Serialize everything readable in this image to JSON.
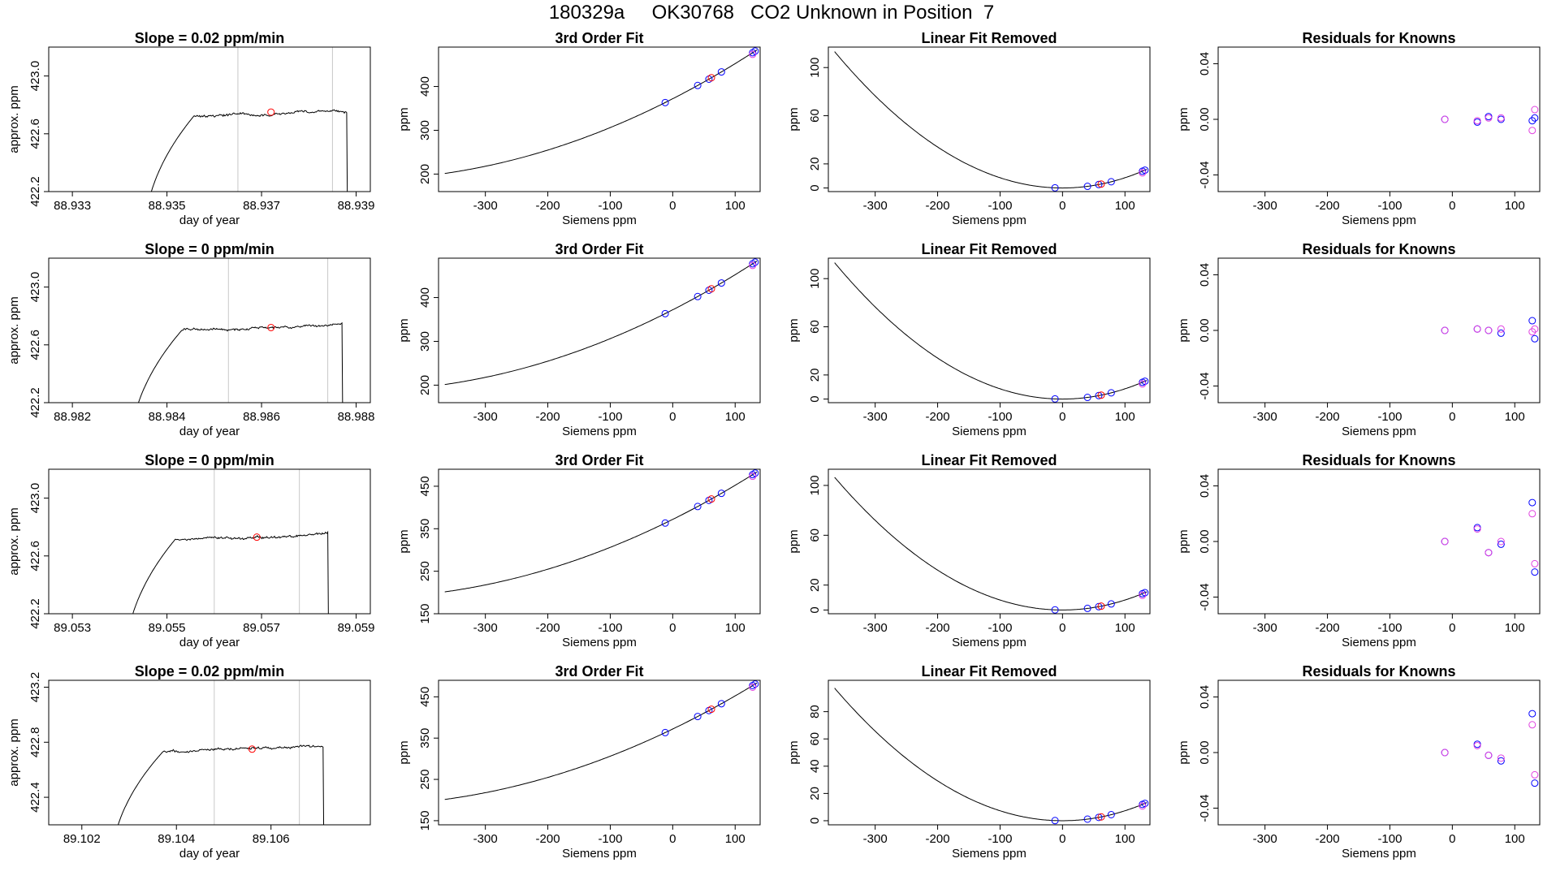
{
  "title": "180329a     OK30768   CO2 Unknown in Position  7",
  "colors": {
    "line": "#000000",
    "ref": "#c8c8c8",
    "known": "#0000ff",
    "resid2": "#e040e0",
    "unknown": "#ff0000"
  },
  "chart_data": [
    {
      "row": 1,
      "type": "line",
      "title": "Slope =  0.02  ppm/min",
      "xlabel": "day of year",
      "ylabel": "approx. ppm",
      "xlim": [
        88.9325,
        88.9393
      ],
      "ylim": [
        422.2,
        423.2
      ],
      "xticks": [
        "88.933",
        "88.935",
        "88.937",
        "88.939"
      ],
      "xtick_values": [
        88.933,
        88.935,
        88.937,
        88.939
      ],
      "yticks": [
        "422.2",
        "422.6",
        "423.0"
      ],
      "ytick_values": [
        422.2,
        422.6,
        423.0
      ],
      "ref_lines": [
        88.9365,
        88.9385
      ],
      "start": 88.9345,
      "end": 88.9388,
      "plateau": 422.74,
      "unknown_point": [
        88.9372,
        422.75
      ]
    },
    {
      "row": 1,
      "type": "line",
      "title": "3rd Order Fit",
      "xlabel": "Siemens ppm",
      "ylabel": "ppm",
      "xlim": [
        -375,
        140
      ],
      "ylim": [
        160,
        490
      ],
      "xticks": [
        "-300",
        "-200",
        "-100",
        "0",
        "100"
      ],
      "xtick_values": [
        -300,
        -200,
        -100,
        0,
        100
      ],
      "yticks": [
        "200",
        "300",
        "400"
      ],
      "ytick_values": [
        200,
        300,
        400
      ],
      "curve_x_range": [
        -365,
        135
      ],
      "curve_coeffs": [
        372,
        0.73,
        0.00072
      ],
      "known_x": [
        -12,
        40,
        58,
        78,
        128,
        132
      ],
      "unknown_x": [
        62
      ]
    },
    {
      "row": 1,
      "type": "line",
      "title": "Linear Fit Removed",
      "xlabel": "Siemens ppm",
      "ylabel": "ppm",
      "xlim": [
        -375,
        140
      ],
      "ylim": [
        -3,
        117
      ],
      "xticks": [
        "-300",
        "-200",
        "-100",
        "0",
        "100"
      ],
      "xtick_values": [
        -300,
        -200,
        -100,
        0,
        100
      ],
      "yticks": [
        "0",
        "20",
        "60",
        "100"
      ],
      "ytick_values": [
        0,
        20,
        60,
        100
      ],
      "curve_x_range": [
        -365,
        135
      ],
      "quad_center": 0,
      "quad_a": 0.00085,
      "known_x": [
        -12,
        40,
        58,
        78,
        128,
        132
      ],
      "unknown_x": [
        62
      ]
    },
    {
      "row": 1,
      "type": "scatter",
      "title": "Residuals for Knowns",
      "xlabel": "Siemens ppm",
      "ylabel": "ppm",
      "xlim": [
        -375,
        140
      ],
      "ylim": [
        -0.052,
        0.052
      ],
      "xticks": [
        "-300",
        "-200",
        "-100",
        "0",
        "100"
      ],
      "xtick_values": [
        -300,
        -200,
        -100,
        0,
        100
      ],
      "yticks": [
        "-0.04",
        "0.00",
        "0.04"
      ],
      "ytick_values": [
        -0.04,
        0,
        0.04
      ],
      "x": [
        -12,
        40,
        58,
        78,
        128,
        132
      ],
      "series": [
        {
          "name": "residual A",
          "values": [
            0.0,
            -0.002,
            0.002,
            0.0,
            -0.001,
            0.001
          ]
        },
        {
          "name": "residual B",
          "values": [
            0.0,
            -0.001,
            0.001,
            0.001,
            -0.008,
            0.007
          ]
        }
      ]
    },
    {
      "row": 2,
      "type": "line",
      "title": "Slope =  0  ppm/min",
      "xlabel": "day of year",
      "ylabel": "approx. ppm",
      "xlim": [
        88.9815,
        88.9883
      ],
      "ylim": [
        422.2,
        423.2
      ],
      "xticks": [
        "88.982",
        "88.984",
        "88.986",
        "88.988"
      ],
      "xtick_values": [
        88.982,
        88.984,
        88.986,
        88.988
      ],
      "yticks": [
        "422.2",
        "422.6",
        "423.0"
      ],
      "ytick_values": [
        422.2,
        422.6,
        423.0
      ],
      "ref_lines": [
        88.9853,
        88.9874
      ],
      "start": 88.9832,
      "end": 88.9877,
      "plateau": 422.72,
      "unknown_point": [
        88.9862,
        422.72
      ]
    },
    {
      "row": 2,
      "type": "line",
      "title": "3rd Order Fit",
      "xlabel": "Siemens ppm",
      "ylabel": "ppm",
      "xlim": [
        -375,
        140
      ],
      "ylim": [
        160,
        490
      ],
      "xticks": [
        "-300",
        "-200",
        "-100",
        "0",
        "100"
      ],
      "xtick_values": [
        -300,
        -200,
        -100,
        0,
        100
      ],
      "yticks": [
        "200",
        "300",
        "400"
      ],
      "ytick_values": [
        200,
        300,
        400
      ],
      "curve_x_range": [
        -365,
        135
      ],
      "curve_coeffs": [
        372,
        0.73,
        0.00072
      ],
      "known_x": [
        -12,
        40,
        58,
        78,
        128,
        132
      ],
      "unknown_x": [
        62
      ]
    },
    {
      "row": 2,
      "type": "line",
      "title": "Linear Fit Removed",
      "xlabel": "Siemens ppm",
      "ylabel": "ppm",
      "xlim": [
        -375,
        140
      ],
      "ylim": [
        -3,
        117
      ],
      "xticks": [
        "-300",
        "-200",
        "-100",
        "0",
        "100"
      ],
      "xtick_values": [
        -300,
        -200,
        -100,
        0,
        100
      ],
      "yticks": [
        "0",
        "20",
        "60",
        "100"
      ],
      "ytick_values": [
        0,
        20,
        60,
        100
      ],
      "curve_x_range": [
        -365,
        135
      ],
      "quad_center": 0,
      "quad_a": 0.00085,
      "known_x": [
        -12,
        40,
        58,
        78,
        128,
        132
      ],
      "unknown_x": [
        62
      ]
    },
    {
      "row": 2,
      "type": "scatter",
      "title": "Residuals for Knowns",
      "xlabel": "Siemens ppm",
      "ylabel": "ppm",
      "xlim": [
        -375,
        140
      ],
      "ylim": [
        -0.052,
        0.052
      ],
      "xticks": [
        "-300",
        "-200",
        "-100",
        "0",
        "100"
      ],
      "xtick_values": [
        -300,
        -200,
        -100,
        0,
        100
      ],
      "yticks": [
        "-0.04",
        "0.00",
        "0.04"
      ],
      "ytick_values": [
        -0.04,
        0,
        0.04
      ],
      "x": [
        -12,
        40,
        58,
        78,
        128,
        132
      ],
      "series": [
        {
          "name": "residual A",
          "values": [
            0.0,
            0.001,
            0.0,
            -0.002,
            0.007,
            -0.006
          ]
        },
        {
          "name": "residual B",
          "values": [
            0.0,
            0.001,
            0.0,
            0.001,
            -0.001,
            0.001
          ]
        }
      ]
    },
    {
      "row": 3,
      "type": "line",
      "title": "Slope =  0  ppm/min",
      "xlabel": "day of year",
      "ylabel": "approx. ppm",
      "xlim": [
        89.0525,
        89.0593
      ],
      "ylim": [
        422.2,
        423.2
      ],
      "xticks": [
        "89.053",
        "89.055",
        "89.057",
        "89.059"
      ],
      "xtick_values": [
        89.053,
        89.055,
        89.057,
        89.059
      ],
      "yticks": [
        "422.2",
        "422.6",
        "423.0"
      ],
      "ytick_values": [
        422.2,
        422.6,
        423.0
      ],
      "ref_lines": [
        89.056,
        89.0578
      ],
      "start": 89.0541,
      "end": 89.0584,
      "plateau": 422.73,
      "unknown_point": [
        89.0569,
        422.73
      ]
    },
    {
      "row": 3,
      "type": "line",
      "title": "3rd Order Fit",
      "xlabel": "Siemens ppm",
      "ylabel": "ppm",
      "xlim": [
        -375,
        140
      ],
      "ylim": [
        150,
        490
      ],
      "xticks": [
        "-300",
        "-200",
        "-100",
        "0",
        "100"
      ],
      "xtick_values": [
        -300,
        -200,
        -100,
        0,
        100
      ],
      "yticks": [
        "150",
        "250",
        "350",
        "450"
      ],
      "ytick_values": [
        150,
        250,
        350,
        450
      ],
      "curve_x_range": [
        -365,
        135
      ],
      "curve_coeffs": [
        372,
        0.73,
        0.00072
      ],
      "known_x": [
        -12,
        40,
        58,
        78,
        128,
        132
      ],
      "unknown_x": [
        62
      ]
    },
    {
      "row": 3,
      "type": "line",
      "title": "Linear Fit Removed",
      "xlabel": "Siemens ppm",
      "ylabel": "ppm",
      "xlim": [
        -375,
        140
      ],
      "ylim": [
        -3,
        113
      ],
      "xticks": [
        "-300",
        "-200",
        "-100",
        "0",
        "100"
      ],
      "xtick_values": [
        -300,
        -200,
        -100,
        0,
        100
      ],
      "yticks": [
        "0",
        "20",
        "60",
        "100"
      ],
      "ytick_values": [
        0,
        20,
        60,
        100
      ],
      "curve_x_range": [
        -365,
        135
      ],
      "quad_center": 0,
      "quad_a": 0.0008,
      "known_x": [
        -12,
        40,
        58,
        78,
        128,
        132
      ],
      "unknown_x": [
        62
      ]
    },
    {
      "row": 3,
      "type": "scatter",
      "title": "Residuals for Knowns",
      "xlabel": "Siemens ppm",
      "ylabel": "ppm",
      "xlim": [
        -375,
        140
      ],
      "ylim": [
        -0.052,
        0.052
      ],
      "xticks": [
        "-300",
        "-200",
        "-100",
        "0",
        "100"
      ],
      "xtick_values": [
        -300,
        -200,
        -100,
        0,
        100
      ],
      "yticks": [
        "-0.04",
        "0.00",
        "0.04"
      ],
      "ytick_values": [
        -0.04,
        0,
        0.04
      ],
      "x": [
        -12,
        40,
        58,
        78,
        128,
        132
      ],
      "series": [
        {
          "name": "residual A",
          "values": [
            0.0,
            0.01,
            -0.008,
            -0.002,
            0.028,
            -0.022
          ]
        },
        {
          "name": "residual B",
          "values": [
            0.0,
            0.009,
            -0.008,
            0.0,
            0.02,
            -0.016
          ]
        }
      ]
    },
    {
      "row": 4,
      "type": "line",
      "title": "Slope =  0.02  ppm/min",
      "xlabel": "day of year",
      "ylabel": "approx. ppm",
      "xlim": [
        89.1013,
        89.1081
      ],
      "ylim": [
        422.2,
        423.25
      ],
      "xticks": [
        "89.102",
        "89.104",
        "89.106"
      ],
      "xtick_values": [
        89.102,
        89.104,
        89.106
      ],
      "yticks": [
        "422.4",
        "422.8",
        "423.2"
      ],
      "ytick_values": [
        422.4,
        422.8,
        423.2
      ],
      "ref_lines": [
        89.1048,
        89.1066
      ],
      "start": 89.1026,
      "end": 89.1071,
      "plateau": 422.75,
      "unknown_point": [
        89.1056,
        422.75
      ]
    },
    {
      "row": 4,
      "type": "line",
      "title": "3rd Order Fit",
      "xlabel": "Siemens ppm",
      "ylabel": "ppm",
      "xlim": [
        -375,
        140
      ],
      "ylim": [
        140,
        490
      ],
      "xticks": [
        "-300",
        "-200",
        "-100",
        "0",
        "100"
      ],
      "xtick_values": [
        -300,
        -200,
        -100,
        0,
        100
      ],
      "yticks": [
        "150",
        "250",
        "350",
        "450"
      ],
      "ytick_values": [
        150,
        250,
        350,
        450
      ],
      "curve_x_range": [
        -365,
        135
      ],
      "curve_coeffs": [
        372,
        0.73,
        0.00072
      ],
      "known_x": [
        -12,
        40,
        58,
        78,
        128,
        132
      ],
      "unknown_x": [
        62
      ]
    },
    {
      "row": 4,
      "type": "line",
      "title": "Linear Fit Removed",
      "xlabel": "Siemens ppm",
      "ylabel": "ppm",
      "xlim": [
        -375,
        140
      ],
      "ylim": [
        -3,
        103
      ],
      "xticks": [
        "-300",
        "-200",
        "-100",
        "0",
        "100"
      ],
      "xtick_values": [
        -300,
        -200,
        -100,
        0,
        100
      ],
      "yticks": [
        "0",
        "20",
        "40",
        "60",
        "80"
      ],
      "ytick_values": [
        0,
        20,
        40,
        60,
        80
      ],
      "curve_x_range": [
        -365,
        135
      ],
      "quad_center": 0,
      "quad_a": 0.00073,
      "known_x": [
        -12,
        40,
        58,
        78,
        128,
        132
      ],
      "unknown_x": [
        62
      ]
    },
    {
      "row": 4,
      "type": "scatter",
      "title": "Residuals for Knowns",
      "xlabel": "Siemens ppm",
      "ylabel": "ppm",
      "xlim": [
        -375,
        140
      ],
      "ylim": [
        -0.052,
        0.052
      ],
      "xticks": [
        "-300",
        "-200",
        "-100",
        "0",
        "100"
      ],
      "xtick_values": [
        -300,
        -200,
        -100,
        0,
        100
      ],
      "yticks": [
        "-0.04",
        "0.00",
        "0.04"
      ],
      "ytick_values": [
        -0.04,
        0,
        0.04
      ],
      "x": [
        -12,
        40,
        58,
        78,
        128,
        132
      ],
      "series": [
        {
          "name": "residual A",
          "values": [
            0.0,
            0.006,
            -0.002,
            -0.006,
            0.028,
            -0.022
          ]
        },
        {
          "name": "residual B",
          "values": [
            0.0,
            0.005,
            -0.002,
            -0.004,
            0.02,
            -0.016
          ]
        }
      ]
    }
  ]
}
